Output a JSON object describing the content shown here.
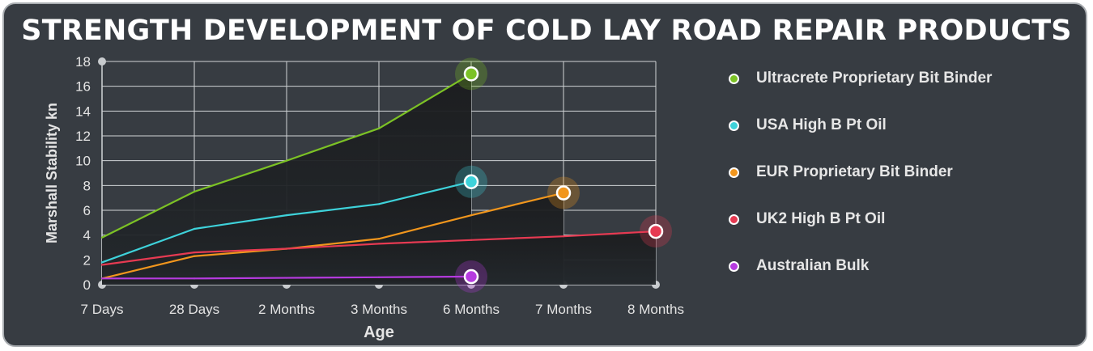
{
  "chart_data": {
    "type": "area",
    "title": "STRENGTH DEVELOPMENT OF COLD LAY ROAD REPAIR PRODUCTS",
    "xlabel": "Age",
    "ylabel": "Marshall Stability kn",
    "categories": [
      "7 Days",
      "28 Days",
      "2 Months",
      "3 Months",
      "6 Months",
      "7 Months",
      "8 Months"
    ],
    "yticks": [
      0,
      2,
      4,
      6,
      8,
      10,
      12,
      14,
      16,
      18
    ],
    "ylim": [
      0,
      18
    ],
    "grid": true,
    "legend_position": "right",
    "series": [
      {
        "name": "Ultracrete Proprietary Bit Binder",
        "color": "#7cc225",
        "values": [
          3.8,
          7.5,
          10.0,
          12.6,
          17.0,
          null,
          null
        ]
      },
      {
        "name": "USA High B Pt Oil",
        "color": "#3ed2da",
        "values": [
          1.8,
          4.5,
          5.6,
          6.5,
          8.3,
          null,
          null
        ]
      },
      {
        "name": "EUR Proprietary Bit Binder",
        "color": "#f1961d",
        "values": [
          0.5,
          2.3,
          2.9,
          3.7,
          5.6,
          7.4,
          null
        ]
      },
      {
        "name": "UK2 High B Pt Oil",
        "color": "#e63a52",
        "values": [
          1.6,
          2.6,
          2.9,
          3.3,
          3.6,
          3.9,
          4.3
        ]
      },
      {
        "name": "Australian Bulk",
        "color": "#b63be0",
        "values": [
          0.5,
          0.5,
          0.55,
          0.6,
          0.65,
          null,
          null
        ]
      }
    ]
  }
}
